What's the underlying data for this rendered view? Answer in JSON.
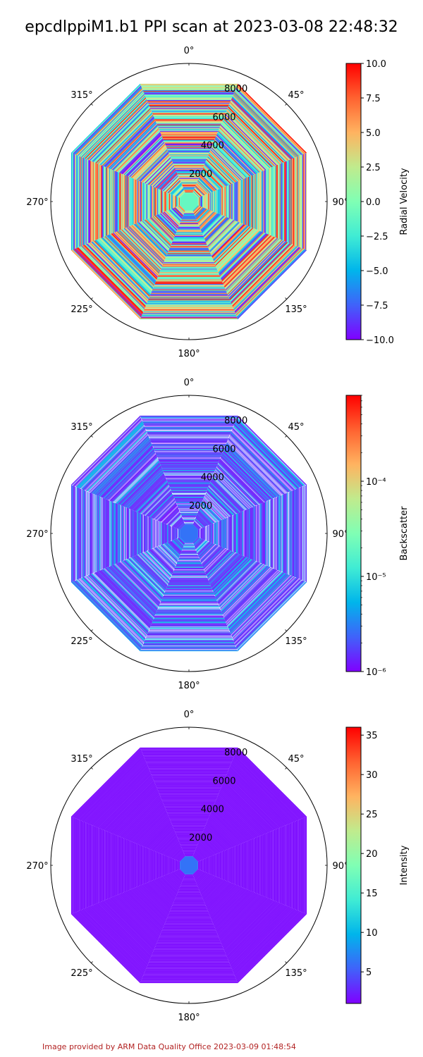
{
  "title": "epcdlppiM1.b1 PPI scan at 2023-03-08 22:48:32",
  "footer": "Image provided by ARM Data Quality Office 2023-03-09 01:48:54",
  "colors": {
    "rainbow": [
      "#8000ff",
      "#4062fa",
      "#00b5eb",
      "#40ecd4",
      "#80ffb4",
      "#c0eb8d",
      "#ffb360",
      "#ff6230",
      "#ff0000"
    ]
  },
  "chart_data": [
    {
      "type": "heatmap",
      "projection": "polar",
      "angle_ticks": [
        "0°",
        "45°",
        "90°",
        "135°",
        "180°",
        "225°",
        "270°",
        "315°"
      ],
      "radial_ticks": [
        "2000",
        "4000",
        "6000",
        "8000"
      ],
      "radial_tick_values": [
        2000,
        4000,
        6000,
        8000
      ],
      "colorbar": {
        "label": "Radial Velocity",
        "scale": "linear",
        "range": [
          -10,
          10
        ],
        "tick_values": [
          -10,
          -7.5,
          -5,
          -2.5,
          0,
          2.5,
          5,
          7.5,
          10
        ],
        "tick_labels": [
          "−10.0",
          "−7.5",
          "−5.0",
          "−2.5",
          "0.0",
          "2.5",
          "5.0",
          "7.5",
          "10.0"
        ]
      },
      "pattern": "random"
    },
    {
      "type": "heatmap",
      "projection": "polar",
      "angle_ticks": [
        "0°",
        "45°",
        "90°",
        "135°",
        "180°",
        "225°",
        "270°",
        "315°"
      ],
      "radial_ticks": [
        "2000",
        "4000",
        "6000",
        "8000"
      ],
      "radial_tick_values": [
        2000,
        4000,
        6000,
        8000
      ],
      "colorbar": {
        "label": "Backscatter",
        "scale": "log",
        "range": [
          1e-06,
          0.0008
        ],
        "tick_values": [
          1e-06,
          1e-05,
          0.0001
        ],
        "tick_labels": [
          "10⁻⁶",
          "10⁻⁵",
          "10⁻⁴"
        ]
      },
      "pattern": "low"
    },
    {
      "type": "heatmap",
      "projection": "polar",
      "angle_ticks": [
        "0°",
        "45°",
        "90°",
        "135°",
        "180°",
        "225°",
        "270°",
        "315°"
      ],
      "radial_ticks": [
        "2000",
        "4000",
        "6000",
        "8000"
      ],
      "radial_tick_values": [
        2000,
        4000,
        6000,
        8000
      ],
      "colorbar": {
        "label": "Intensity",
        "scale": "linear",
        "range": [
          1,
          36
        ],
        "tick_values": [
          5,
          10,
          15,
          20,
          25,
          30,
          35
        ],
        "tick_labels": [
          "5",
          "10",
          "15",
          "20",
          "25",
          "30",
          "35"
        ]
      },
      "pattern": "uniform"
    }
  ]
}
